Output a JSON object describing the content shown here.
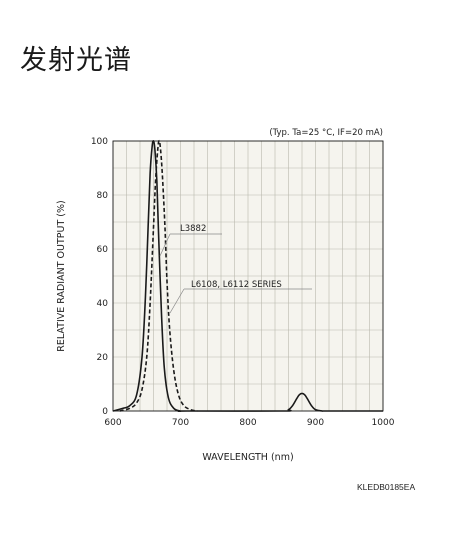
{
  "page": {
    "title": "发射光谱",
    "doc_code": "KLEDB0185EA"
  },
  "chart_data": {
    "type": "line",
    "condition": "(Typ. Ta=25 °C, IF=20 mA)",
    "xlabel": "WAVELENGTH (nm)",
    "ylabel": "RELATIVE RADIANT  OUTPUT (%)",
    "xlim": [
      600,
      1000
    ],
    "ylim": [
      0,
      100
    ],
    "xticks": [
      600,
      700,
      800,
      900,
      1000
    ],
    "yticks": [
      0,
      20,
      40,
      60,
      80,
      100
    ],
    "grid": true,
    "series": [
      {
        "name": "L3882",
        "style": "solid",
        "color": "#1a1a1a",
        "x": [
          600,
          615,
          625,
          635,
          643,
          648,
          652,
          655,
          658,
          660,
          662,
          665,
          668,
          672,
          676,
          682,
          690,
          700,
          710,
          850,
          860,
          866,
          872,
          876,
          880,
          884,
          888,
          894,
          900,
          910,
          920,
          1000
        ],
        "y": [
          0,
          1,
          2,
          6,
          20,
          42,
          68,
          88,
          98,
          100,
          97,
          85,
          62,
          35,
          16,
          5,
          1,
          0,
          0,
          0,
          0.5,
          2,
          4.5,
          6,
          6.5,
          6,
          4.5,
          2,
          0.5,
          0,
          0,
          0
        ]
      },
      {
        "name": "L6108, L6112 SERIES",
        "style": "dashed",
        "color": "#1a1a1a",
        "x": [
          610,
          625,
          635,
          643,
          650,
          655,
          660,
          663,
          666,
          668,
          670,
          673,
          677,
          680,
          684,
          690,
          697,
          705,
          715,
          725
        ],
        "y": [
          0,
          1,
          3,
          8,
          20,
          40,
          68,
          85,
          96,
          100,
          98,
          88,
          68,
          48,
          30,
          15,
          6,
          2,
          0.5,
          0
        ]
      }
    ]
  }
}
